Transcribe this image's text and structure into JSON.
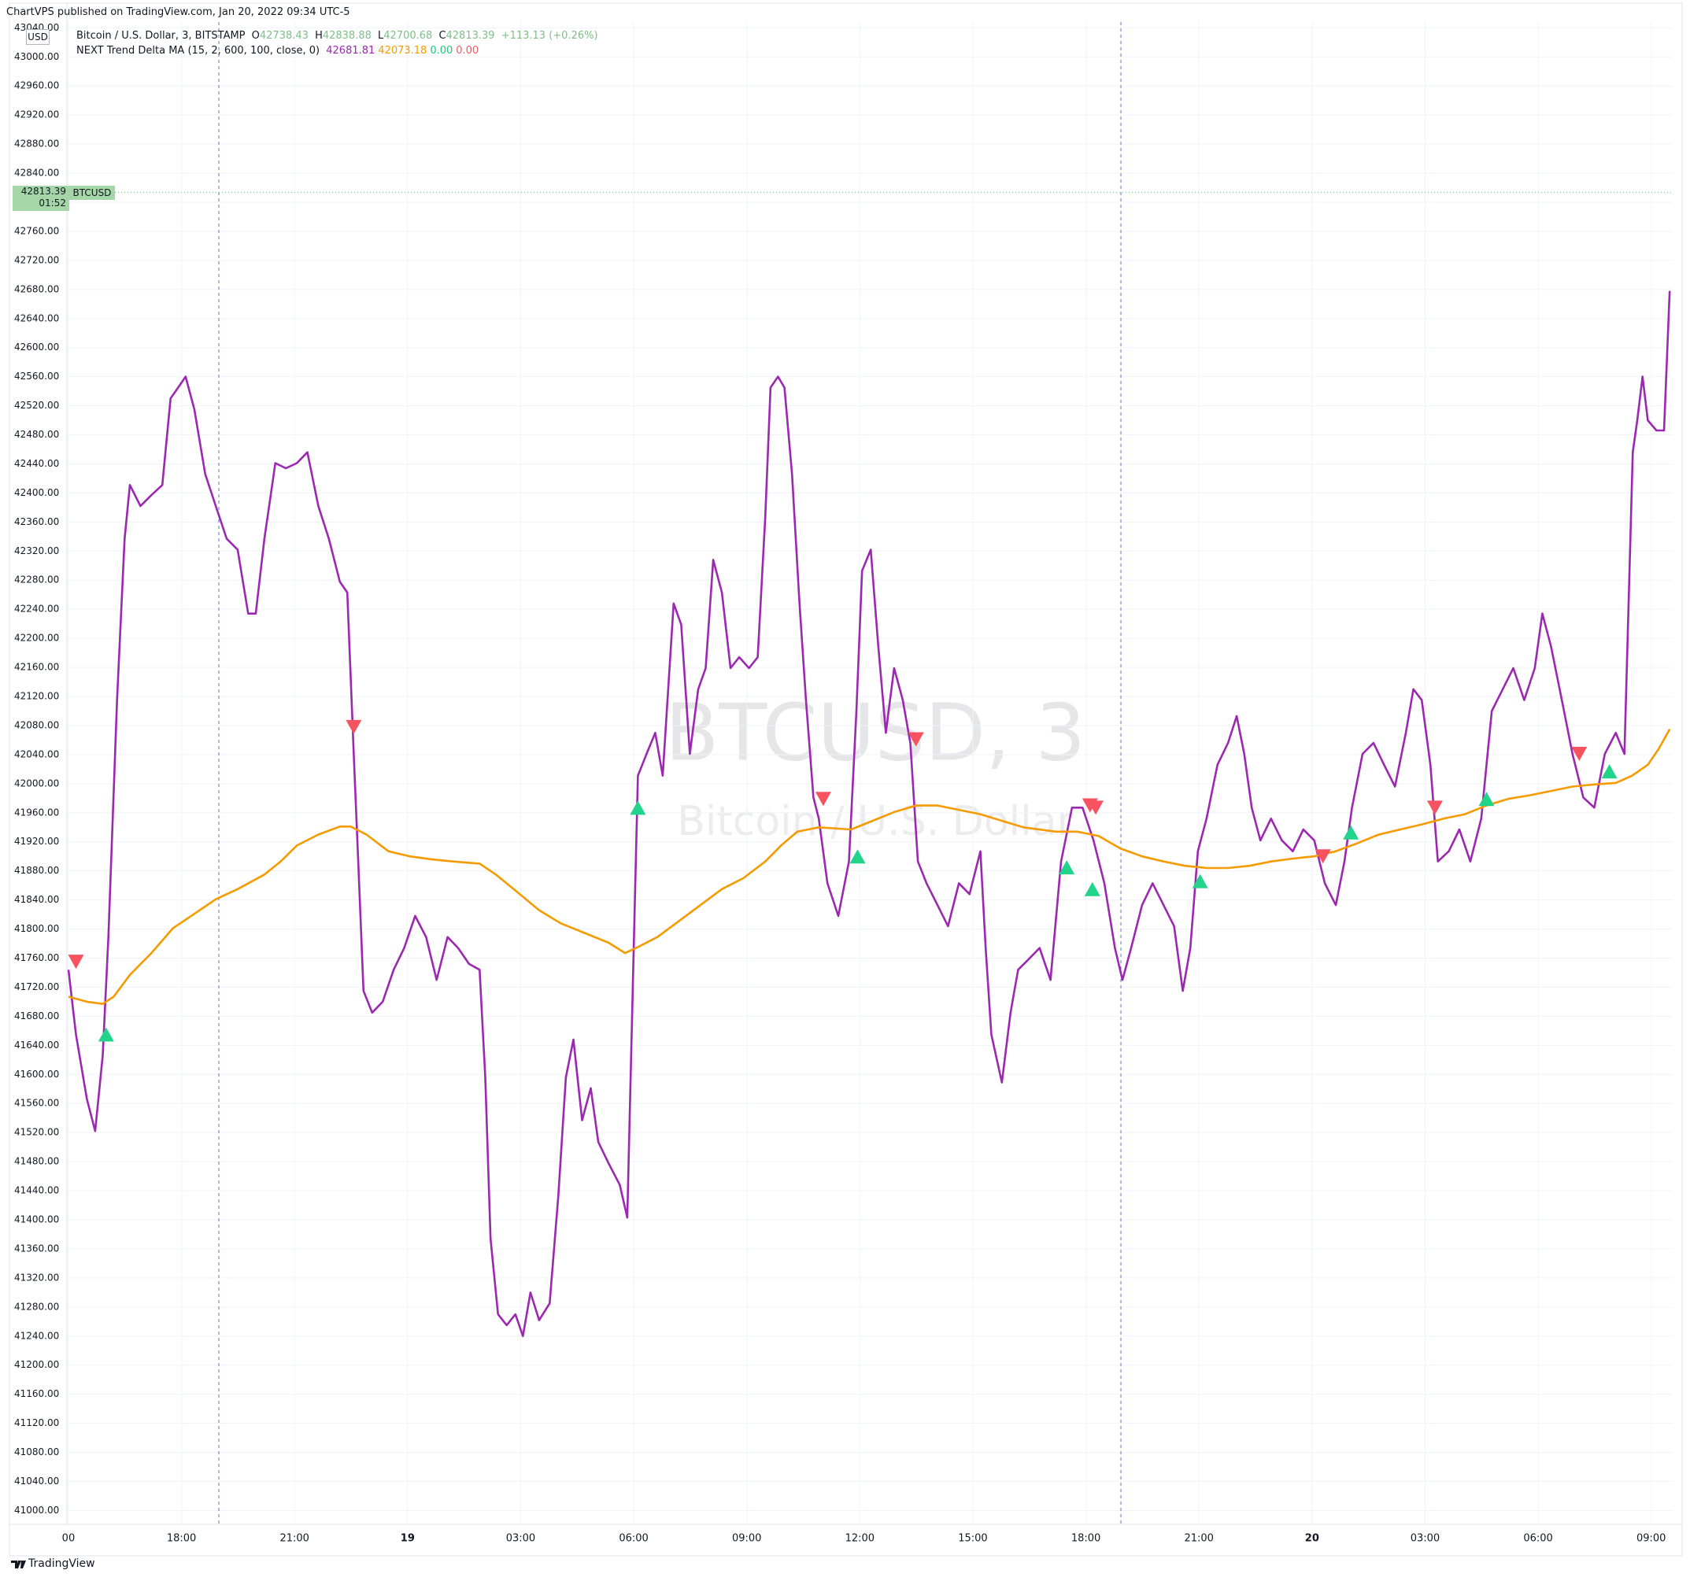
{
  "chart_data": {
    "type": "line",
    "published": "ChartVPS published on TradingView.com, Jan 20, 2022 09:34 UTC-5",
    "currency": "USD",
    "symbol_title": "Bitcoin / U.S. Dollar, 3, BITSTAMP",
    "ohlc_labels": [
      "O",
      "H",
      "L",
      "C"
    ],
    "ohlc": [
      42738.43,
      42838.88,
      42700.68,
      42813.39
    ],
    "change": "+113.13 (+0.26%)",
    "indicator": {
      "title": "NEXT Trend Delta MA (15, 2, 600, 100, close, 0)",
      "readings": [
        {
          "text": "42681.81",
          "color": "#9c27b0"
        },
        {
          "text": "42073.18",
          "color": "#f59b00"
        },
        {
          "text": "0.00",
          "color": "#1fc77a"
        },
        {
          "text": "0.00",
          "color": "#f05a64"
        }
      ]
    },
    "price_tag": {
      "countdown": "01:52",
      "symbol": "BTCUSD",
      "color": "#a5d6a7"
    },
    "watermark": {
      "symbol": "BTCUSD, 3",
      "name": "Bitcoin / U.S. Dollar"
    },
    "footer": "TradingView",
    "grid": true,
    "xlim": [
      14.98,
      57.57
    ],
    "ylim": [
      40981,
      43049
    ],
    "xticks": [
      {
        "value": 15,
        "label": "00"
      },
      {
        "value": 18,
        "label": "18:00"
      },
      {
        "value": 21,
        "label": "21:00"
      },
      {
        "value": 24,
        "label": "19"
      },
      {
        "value": 27,
        "label": "03:00"
      },
      {
        "value": 30,
        "label": "06:00"
      },
      {
        "value": 33,
        "label": "09:00"
      },
      {
        "value": 36,
        "label": "12:00"
      },
      {
        "value": 39,
        "label": "15:00"
      },
      {
        "value": 42,
        "label": "18:00"
      },
      {
        "value": 45,
        "label": "21:00"
      },
      {
        "value": 48,
        "label": "20"
      },
      {
        "value": 51,
        "label": "03:00"
      },
      {
        "value": 54,
        "label": "06:00"
      },
      {
        "value": 57,
        "label": "09:00"
      }
    ],
    "yticks": [
      {
        "value": 41000,
        "label": "41000.00"
      },
      {
        "value": 41040,
        "label": "41040.00"
      },
      {
        "value": 41080,
        "label": "41080.00"
      },
      {
        "value": 41120,
        "label": "41120.00"
      },
      {
        "value": 41160,
        "label": "41160.00"
      },
      {
        "value": 41200,
        "label": "41200.00"
      },
      {
        "value": 41240,
        "label": "41240.00"
      },
      {
        "value": 41280,
        "label": "41280.00"
      },
      {
        "value": 41320,
        "label": "41320.00"
      },
      {
        "value": 41360,
        "label": "41360.00"
      },
      {
        "value": 41400,
        "label": "41400.00"
      },
      {
        "value": 41440,
        "label": "41440.00"
      },
      {
        "value": 41480,
        "label": "41480.00"
      },
      {
        "value": 41520,
        "label": "41520.00"
      },
      {
        "value": 41560,
        "label": "41560.00"
      },
      {
        "value": 41600,
        "label": "41600.00"
      },
      {
        "value": 41640,
        "label": "41640.00"
      },
      {
        "value": 41680,
        "label": "41680.00"
      },
      {
        "value": 41720,
        "label": "41720.00"
      },
      {
        "value": 41760,
        "label": "41760.00"
      },
      {
        "value": 41800,
        "label": "41800.00"
      },
      {
        "value": 41840,
        "label": "41840.00"
      },
      {
        "value": 41880,
        "label": "41880.00"
      },
      {
        "value": 41920,
        "label": "41920.00"
      },
      {
        "value": 41960,
        "label": "41960.00"
      },
      {
        "value": 42000,
        "label": "42000.00"
      },
      {
        "value": 42040,
        "label": "42040.00"
      },
      {
        "value": 42080,
        "label": "42080.00"
      },
      {
        "value": 42120,
        "label": "42120.00"
      },
      {
        "value": 42160,
        "label": "42160.00"
      },
      {
        "value": 42200,
        "label": "42200.00"
      },
      {
        "value": 42240,
        "label": "42240.00"
      },
      {
        "value": 42280,
        "label": "42280.00"
      },
      {
        "value": 42320,
        "label": "42320.00"
      },
      {
        "value": 42360,
        "label": "42360.00"
      },
      {
        "value": 42400,
        "label": "42400.00"
      },
      {
        "value": 42440,
        "label": "42440.00"
      },
      {
        "value": 42480,
        "label": "42480.00"
      },
      {
        "value": 42520,
        "label": "42520.00"
      },
      {
        "value": 42560,
        "label": "42560.00"
      },
      {
        "value": 42600,
        "label": "42600.00"
      },
      {
        "value": 42640,
        "label": "42640.00"
      },
      {
        "value": 42680,
        "label": "42680.00"
      },
      {
        "value": 42720,
        "label": "42720.00"
      },
      {
        "value": 42760,
        "label": "42760.00"
      },
      {
        "value": 42800,
        "label": "42800.00"
      },
      {
        "value": 42840,
        "label": "42840.00"
      },
      {
        "value": 42880,
        "label": "42880.00"
      },
      {
        "value": 42920,
        "label": "42920.00"
      },
      {
        "value": 42960,
        "label": "42960.00"
      },
      {
        "value": 43000,
        "label": "43000.00"
      },
      {
        "value": 43040,
        "label": "43040.00"
      }
    ],
    "series": [
      {
        "color": "#9c27b0",
        "kind": "line",
        "x": [
          15,
          15.2,
          15.49,
          15.71,
          15.91,
          16.06,
          16.29,
          16.49,
          16.63,
          16.91,
          17.2,
          17.49,
          17.71,
          17.91,
          18.11,
          18.34,
          18.63,
          18.91,
          19.2,
          19.49,
          19.77,
          19.97,
          20.2,
          20.49,
          20.77,
          21.06,
          21.34,
          21.63,
          21.91,
          22.2,
          22.4,
          22.57,
          22.69,
          22.83,
          23.06,
          23.34,
          23.63,
          23.91,
          24.2,
          24.49,
          24.77,
          25.06,
          25.34,
          25.63,
          25.91,
          26.06,
          26.2,
          26.4,
          26.63,
          26.86,
          27.06,
          27.26,
          27.49,
          27.77,
          28.0,
          28.2,
          28.4,
          28.63,
          28.86,
          29.06,
          29.34,
          29.63,
          29.83,
          30.0,
          30.11,
          30.34,
          30.57,
          30.77,
          31.06,
          31.26,
          31.49,
          31.71,
          31.91,
          32.11,
          32.34,
          32.57,
          32.8,
          33.06,
          33.29,
          33.49,
          33.63,
          33.83,
          34.0,
          34.2,
          34.4,
          34.57,
          34.77,
          34.91,
          35.14,
          35.43,
          35.71,
          35.91,
          36.06,
          36.29,
          36.49,
          36.69,
          36.91,
          37.14,
          37.34,
          37.54,
          37.77,
          38.06,
          38.34,
          38.63,
          38.91,
          39.2,
          39.34,
          39.49,
          39.77,
          40.0,
          40.2,
          40.49,
          40.77,
          41.06,
          41.34,
          41.63,
          41.91,
          42.2,
          42.49,
          42.77,
          42.97,
          43.2,
          43.49,
          43.77,
          44.06,
          44.34,
          44.57,
          44.77,
          44.97,
          45.2,
          45.49,
          45.77,
          46.0,
          46.2,
          46.4,
          46.63,
          46.91,
          47.2,
          47.49,
          47.77,
          48.06,
          48.34,
          48.63,
          48.86,
          49.06,
          49.34,
          49.63,
          49.91,
          50.2,
          50.49,
          50.69,
          50.91,
          51.14,
          51.34,
          51.63,
          51.91,
          52.2,
          52.49,
          52.77,
          53.06,
          53.34,
          53.63,
          53.91,
          54.11,
          54.34,
          54.63,
          54.91,
          55.2,
          55.49,
          55.77,
          56.06,
          56.29,
          56.4,
          56.51,
          56.63,
          56.77,
          56.91,
          57.14,
          57.34,
          57.49
        ],
        "values": [
          41744,
          41655,
          41566,
          41522,
          41626,
          41789,
          42115,
          42337,
          42411,
          42382,
          42397,
          42411,
          42530,
          42545,
          42560,
          42515,
          42426,
          42382,
          42337,
          42322,
          42234,
          42234,
          42337,
          42441,
          42434,
          42441,
          42456,
          42382,
          42337,
          42278,
          42263,
          42041,
          41893,
          41715,
          41685,
          41700,
          41744,
          41774,
          41818,
          41789,
          41730,
          41789,
          41774,
          41752,
          41744,
          41596,
          41374,
          41270,
          41255,
          41270,
          41240,
          41300,
          41262,
          41285,
          41433,
          41596,
          41648,
          41537,
          41581,
          41507,
          41477,
          41448,
          41403,
          41774,
          42011,
          42041,
          42070,
          42011,
          42248,
          42219,
          42041,
          42130,
          42159,
          42308,
          42263,
          42159,
          42174,
          42159,
          42174,
          42367,
          42545,
          42560,
          42545,
          42426,
          42248,
          42115,
          41981,
          41952,
          41863,
          41818,
          41893,
          42100,
          42293,
          42322,
          42189,
          42070,
          42159,
          42115,
          42056,
          41893,
          41863,
          41833,
          41804,
          41863,
          41848,
          41907,
          41774,
          41655,
          41589,
          41685,
          41744,
          41759,
          41774,
          41730,
          41893,
          41967,
          41967,
          41922,
          41863,
          41774,
          41730,
          41774,
          41833,
          41863,
          41833,
          41804,
          41715,
          41774,
          41907,
          41952,
          42026,
          42056,
          42093,
          42041,
          41967,
          41922,
          41952,
          41922,
          41907,
          41937,
          41922,
          41863,
          41833,
          41893,
          41967,
          42041,
          42056,
          42026,
          41996,
          42070,
          42130,
          42115,
          42026,
          41893,
          41907,
          41937,
          41893,
          41952,
          42100,
          42130,
          42159,
          42115,
          42159,
          42234,
          42189,
          42115,
          42041,
          41981,
          41967,
          42041,
          42070,
          42041,
          42248,
          42456,
          42500,
          42560,
          42500,
          42486,
          42486,
          42678
        ]
      },
      {
        "color": "#f59b00",
        "kind": "line",
        "x": [
          15,
          15.49,
          15.91,
          16.2,
          16.63,
          17.2,
          17.77,
          18.34,
          18.91,
          19.49,
          20.2,
          20.63,
          21.06,
          21.63,
          22.2,
          22.49,
          22.91,
          23.49,
          24.06,
          24.63,
          25.2,
          25.91,
          26.34,
          26.91,
          27.49,
          28.06,
          28.77,
          29.34,
          29.77,
          30.06,
          30.63,
          31.2,
          31.77,
          32.34,
          32.91,
          33.49,
          33.91,
          34.34,
          34.91,
          35.77,
          36.34,
          36.91,
          37.49,
          38.06,
          38.63,
          39.2,
          39.77,
          40.34,
          41.2,
          41.77,
          42.34,
          42.91,
          43.49,
          44.06,
          44.63,
          45.2,
          45.77,
          46.34,
          46.91,
          47.49,
          48.06,
          48.63,
          49.2,
          49.77,
          50.34,
          50.91,
          51.49,
          52.06,
          52.63,
          53.2,
          53.77,
          54.34,
          54.91,
          55.49,
          56.06,
          56.49,
          56.91,
          57.2,
          57.49
        ],
        "values": [
          41707,
          41700,
          41697,
          41707,
          41737,
          41767,
          41801,
          41821,
          41841,
          41855,
          41875,
          41893,
          41915,
          41930,
          41941,
          41941,
          41930,
          41907,
          41900,
          41896,
          41893,
          41890,
          41875,
          41851,
          41826,
          41808,
          41793,
          41781,
          41767,
          41774,
          41789,
          41811,
          41833,
          41855,
          41870,
          41893,
          41915,
          41934,
          41940,
          41937,
          41949,
          41961,
          41970,
          41970,
          41964,
          41958,
          41949,
          41940,
          41934,
          41934,
          41928,
          41911,
          41900,
          41893,
          41887,
          41884,
          41884,
          41887,
          41893,
          41897,
          41900,
          41907,
          41918,
          41930,
          41937,
          41944,
          41952,
          41958,
          41970,
          41979,
          41984,
          41990,
          41996,
          41999,
          42001,
          42011,
          42026,
          42048,
          42075
        ]
      },
      {
        "color": "#f7525f",
        "kind": "marker-down",
        "x": [
          15.2,
          22.57,
          35.03,
          37.49,
          42.11,
          42.26,
          48.29,
          51.26,
          55.09
        ],
        "values": [
          41755,
          42078,
          41979,
          42061,
          41970,
          41967,
          41900,
          41967,
          42041
        ]
      },
      {
        "color": "#22d38a",
        "kind": "marker-up",
        "x": [
          16.0,
          30.11,
          35.94,
          41.49,
          42.17,
          45.03,
          49.03,
          52.63,
          55.89
        ],
        "values": [
          41655,
          41967,
          41900,
          41885,
          41855,
          41866,
          41933,
          41979,
          42017
        ]
      }
    ]
  }
}
